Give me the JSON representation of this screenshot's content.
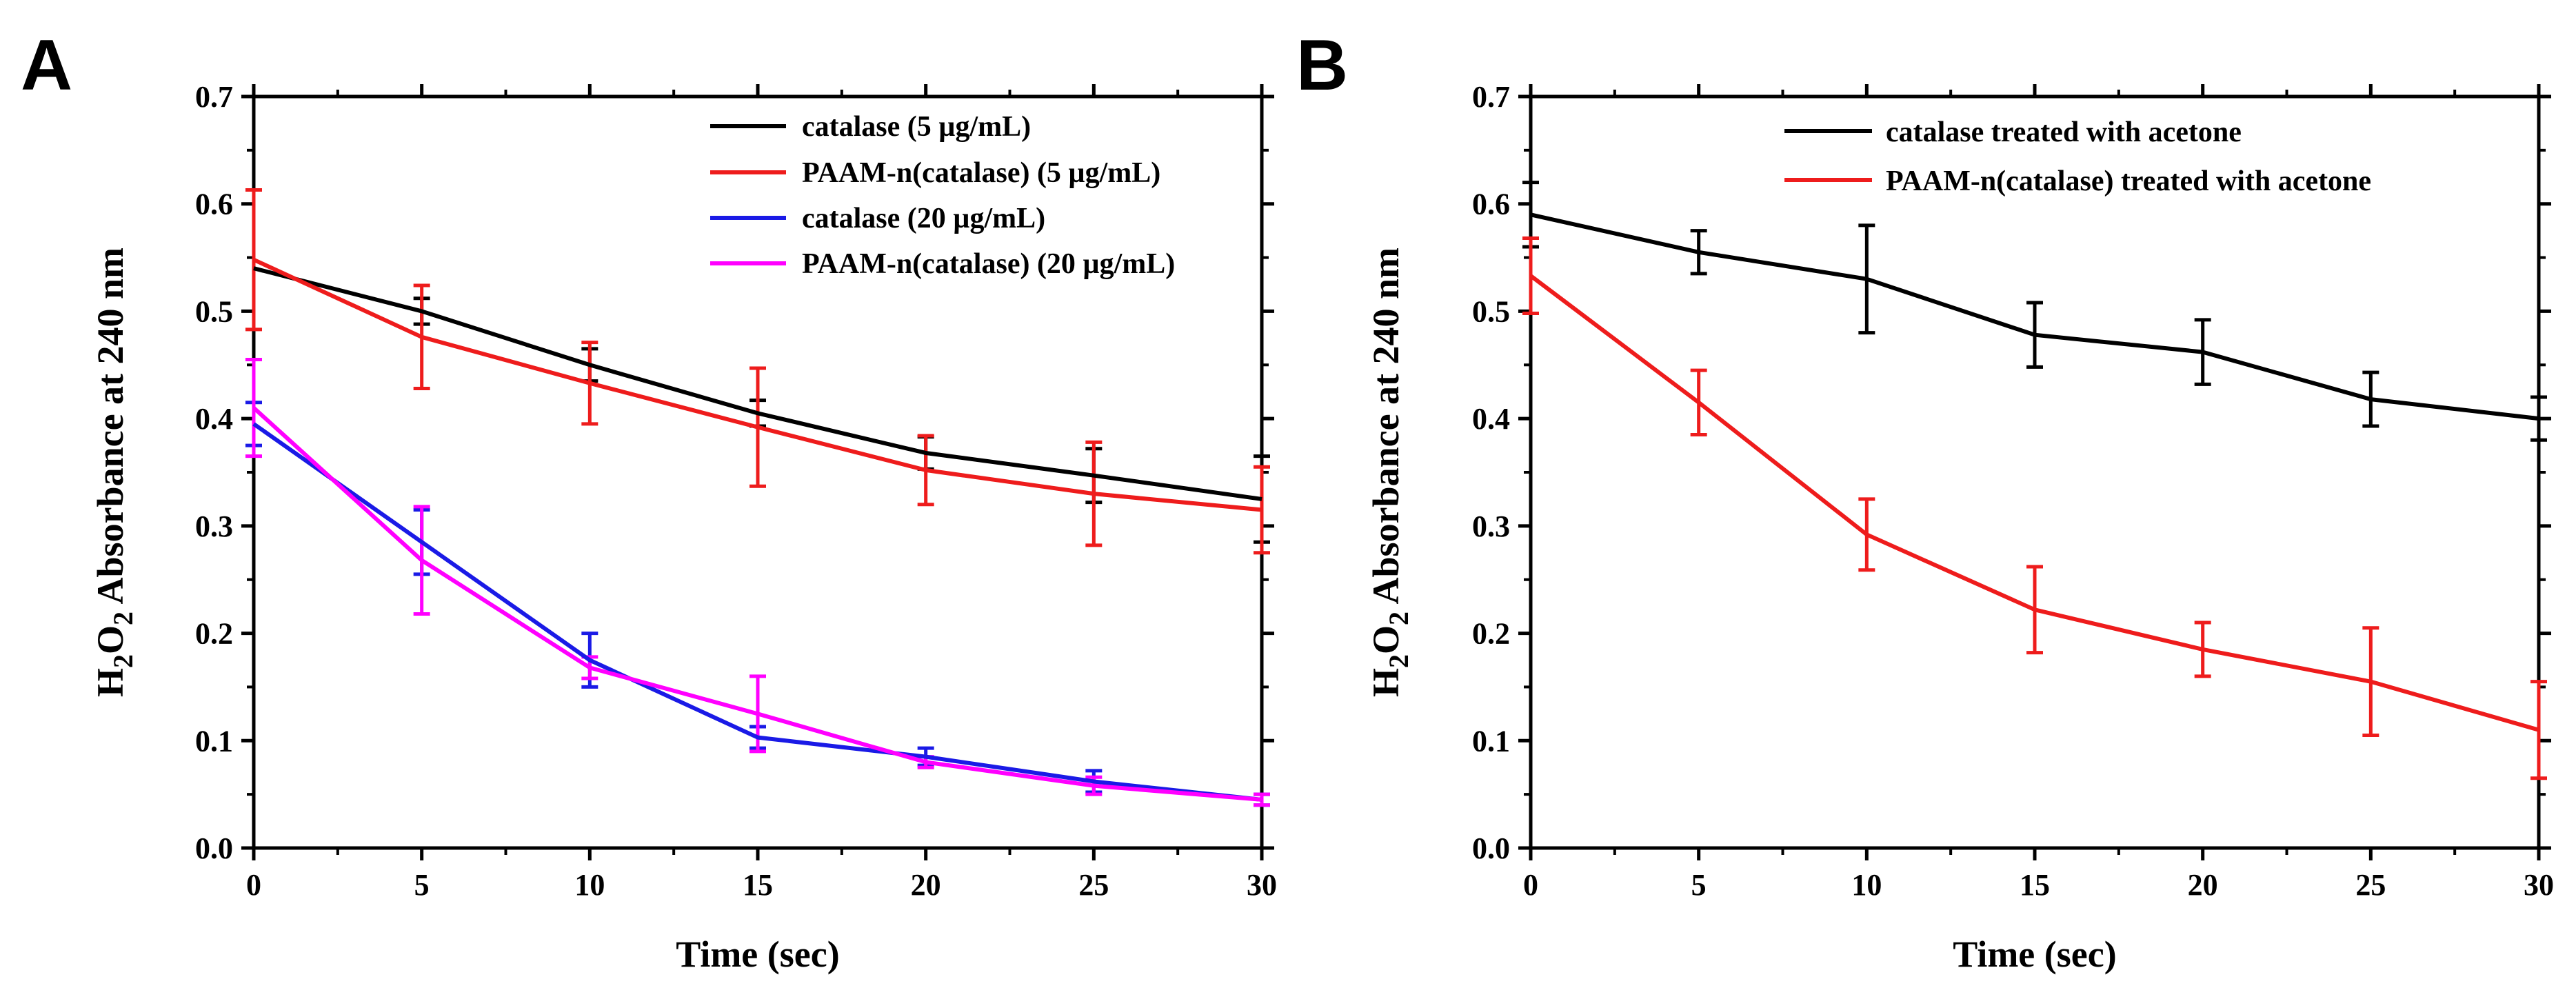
{
  "chart_data": [
    {
      "panel_label": "A",
      "type": "line",
      "xlabel": "Time (sec)",
      "ylabel": {
        "main": "H",
        "sub1": "2",
        "mid": "O",
        "sub2": "2",
        "rest": " Absorbance at 240 nm"
      },
      "xlim": [
        0,
        30
      ],
      "ylim": [
        0,
        0.7
      ],
      "xticks": [
        "0",
        "5",
        "10",
        "15",
        "20",
        "25",
        "30"
      ],
      "yticks": [
        "0.0",
        "0.1",
        "0.2",
        "0.3",
        "0.4",
        "0.5",
        "0.6",
        "0.7"
      ],
      "x": [
        0,
        5,
        10,
        15,
        20,
        25,
        30
      ],
      "legend_position": "top-right",
      "series": [
        {
          "name": "catalase (5 µg/mL)",
          "color": "#000000",
          "values": [
            0.54,
            0.5,
            0.45,
            0.405,
            0.368,
            0.347,
            0.325
          ],
          "errors": [
            0.0,
            0.012,
            0.015,
            0.012,
            0.015,
            0.025,
            0.04
          ]
        },
        {
          "name": "PAAM-n(catalase) (5 µg/mL)",
          "color": "#ee1c1c",
          "values": [
            0.548,
            0.476,
            0.433,
            0.392,
            0.352,
            0.33,
            0.315
          ],
          "errors": [
            0.065,
            0.048,
            0.038,
            0.055,
            0.032,
            0.048,
            0.04
          ]
        },
        {
          "name": "catalase (20 µg/mL)",
          "color": "#1a1ae6",
          "values": [
            0.395,
            0.285,
            0.175,
            0.103,
            0.085,
            0.062,
            0.045
          ],
          "errors": [
            0.02,
            0.03,
            0.025,
            0.01,
            0.008,
            0.01,
            0.005
          ]
        },
        {
          "name": "PAAM-n(catalase) (20 µg/mL)",
          "color": "#ff00ff",
          "values": [
            0.41,
            0.268,
            0.168,
            0.125,
            0.08,
            0.058,
            0.045
          ],
          "errors": [
            0.045,
            0.05,
            0.01,
            0.035,
            0.005,
            0.008,
            0.005
          ]
        }
      ]
    },
    {
      "panel_label": "B",
      "type": "line",
      "xlabel": "Time (sec)",
      "ylabel": {
        "main": "H",
        "sub1": "2",
        "mid": "O",
        "sub2": "2",
        "rest": " Absorbance at 240 nm"
      },
      "xlim": [
        0,
        30
      ],
      "ylim": [
        0,
        0.7
      ],
      "xticks": [
        "0",
        "5",
        "10",
        "15",
        "20",
        "25",
        "30"
      ],
      "yticks": [
        "0.0",
        "0.1",
        "0.2",
        "0.3",
        "0.4",
        "0.5",
        "0.6",
        "0.7"
      ],
      "x": [
        0,
        5,
        10,
        15,
        20,
        25,
        30
      ],
      "legend_position": "top-right",
      "series": [
        {
          "name": "catalase treated with acetone",
          "color": "#000000",
          "values": [
            0.59,
            0.555,
            0.53,
            0.478,
            0.462,
            0.418,
            0.4
          ],
          "errors": [
            0.03,
            0.02,
            0.05,
            0.03,
            0.03,
            0.025,
            0.02
          ]
        },
        {
          "name": "PAAM-n(catalase) treated with acetone",
          "color": "#ee1c1c",
          "values": [
            0.533,
            0.415,
            0.292,
            0.222,
            0.185,
            0.155,
            0.11
          ],
          "errors": [
            0.035,
            0.03,
            0.033,
            0.04,
            0.025,
            0.05,
            0.045
          ]
        }
      ]
    }
  ]
}
